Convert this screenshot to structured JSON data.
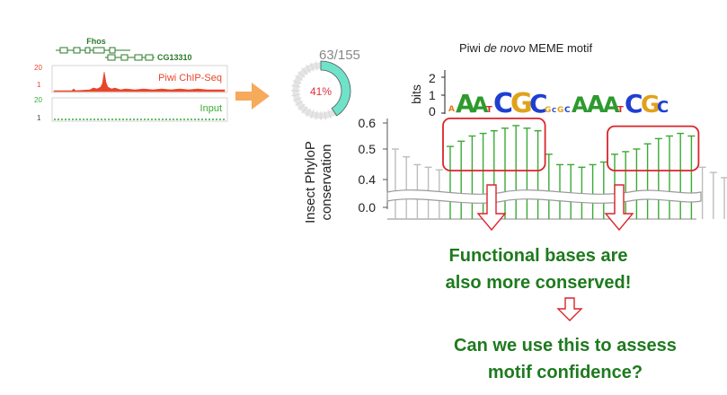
{
  "genome_browser": {
    "gene_1": "Fhos",
    "gene_2": "CG13310",
    "chip_track": {
      "label": "Piwi ChIP-Seq",
      "scale_top": "20",
      "scale_bottom": "1",
      "color": "#e8462a"
    },
    "input_track": {
      "label": "Input",
      "scale_top": "20",
      "scale_bottom": "1",
      "color": "#3aaa35"
    }
  },
  "donut": {
    "count_label": "63/155",
    "percent_label": "41%",
    "fraction": 0.41,
    "fill_color": "#6fe3c9",
    "text_color": "#e0303a"
  },
  "motif": {
    "title_prefix": "Piwi ",
    "title_italic": "de novo",
    "title_suffix": " MEME motif",
    "bits_label": "bits",
    "bits_ticks": [
      "2",
      "1",
      "0"
    ]
  },
  "conservation_chart": {
    "ylabel_line1": "Insect PhyloP",
    "ylabel_line2": "conservation",
    "yticks": [
      "0.6",
      "0.5",
      "0.4",
      "0.0"
    ]
  },
  "chart_data": {
    "type": "bar",
    "ylabel": "Insect PhyloP conservation",
    "yticks": [
      0.0,
      0.4,
      0.5,
      0.6
    ],
    "background_values": [
      0.5,
      0.47,
      0.44,
      0.43,
      0.42
    ],
    "motif_values": [
      0.51,
      0.53,
      0.55,
      0.56,
      0.57,
      0.58,
      0.59,
      0.58,
      0.57,
      0.48,
      0.44,
      0.44,
      0.43,
      0.44,
      0.45,
      0.48,
      0.49,
      0.5,
      0.52,
      0.54,
      0.55,
      0.56,
      0.55
    ],
    "tail_values": [
      0.43,
      0.41,
      0.39,
      0.37,
      0.36
    ],
    "highlight_groups": [
      [
        0,
        8
      ],
      [
        15,
        22
      ]
    ]
  },
  "text": {
    "line1": "Functional bases are",
    "line2": "also more conserved!",
    "line3": "Can we use this to assess",
    "line4": "motif confidence?"
  },
  "colors": {
    "green": "#1e7a1e",
    "red_box": "#d9252b",
    "orange_arrow": "#f4a14a",
    "bar_green": "#3aaa35",
    "bar_gray": "#bdbdbd"
  }
}
